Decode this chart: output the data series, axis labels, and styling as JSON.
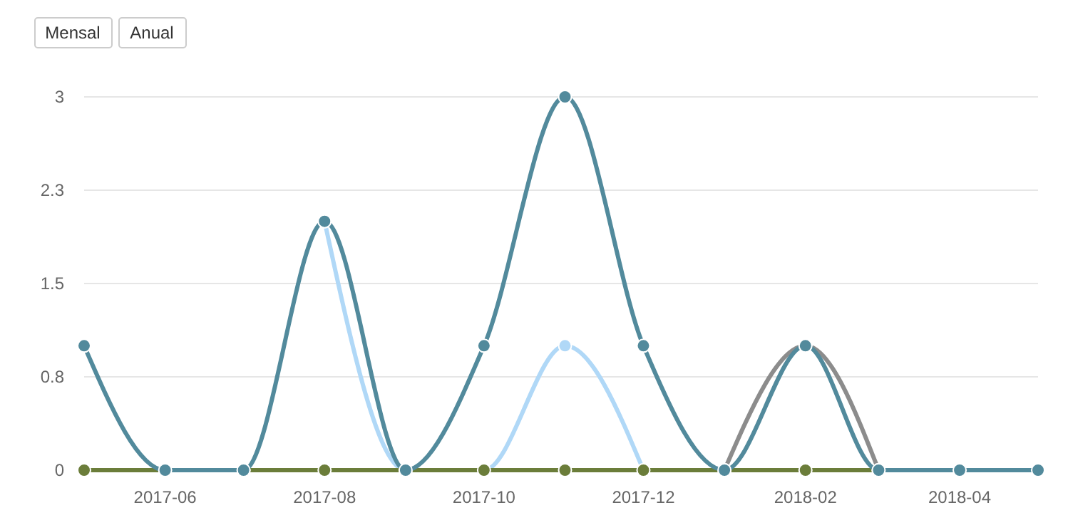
{
  "chart_data": {
    "type": "line",
    "x": [
      "2017-05",
      "2017-06",
      "2017-07",
      "2017-08",
      "2017-09",
      "2017-10",
      "2017-11",
      "2017-12",
      "2018-01",
      "2018-02",
      "2018-03",
      "2018-04",
      "2018-05"
    ],
    "series": [
      {
        "color": "#b0d8f7",
        "values": [
          null,
          null,
          null,
          2,
          0,
          0,
          1,
          0,
          null,
          null,
          null,
          null,
          null
        ]
      },
      {
        "color": "#8c8c8c",
        "values": [
          null,
          null,
          null,
          null,
          null,
          null,
          null,
          null,
          0,
          1,
          0,
          null,
          null
        ]
      },
      {
        "color": "#6b7d3a",
        "values": [
          0,
          0,
          0,
          0,
          0,
          0,
          0,
          0,
          0,
          0,
          0,
          0,
          0
        ]
      },
      {
        "color": "#528a9c",
        "values": [
          1,
          0,
          0,
          2,
          0,
          1,
          3,
          1,
          0,
          1,
          0,
          0,
          0
        ]
      }
    ],
    "xlim": [
      "2017-05",
      "2018-05"
    ],
    "xticks": [
      "2017-06",
      "2017-08",
      "2017-10",
      "2017-12",
      "2018-02",
      "2018-04"
    ],
    "ylim": [
      0,
      3
    ],
    "yticks": [
      0,
      {
        "value": 0.75,
        "label": "0.8"
      },
      1.5,
      {
        "value": 2.25,
        "label": "2.3"
      },
      3
    ],
    "grid": "y",
    "marker": "circle",
    "line_style": "solid",
    "annotations": [
      "Mensal",
      "Anual"
    ]
  }
}
